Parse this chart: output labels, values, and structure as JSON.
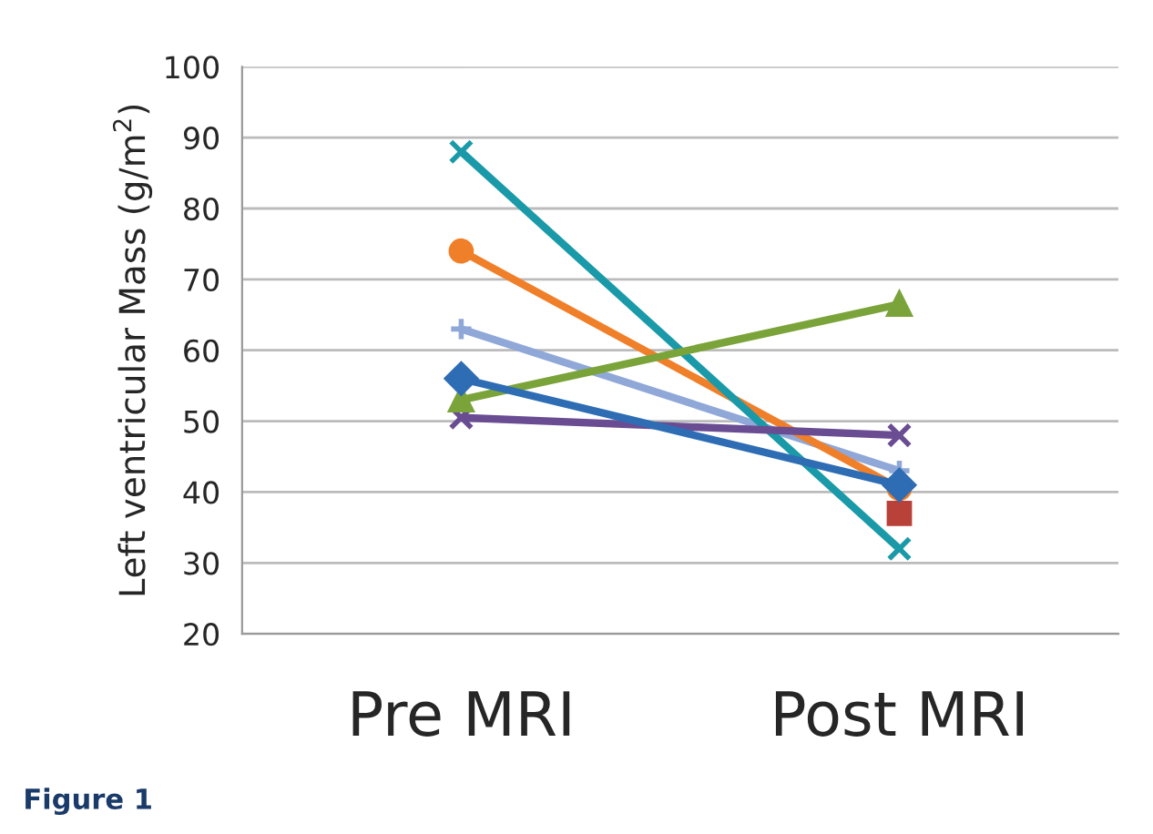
{
  "chart_data": {
    "type": "line",
    "ylabel": "Left ventricular Mass (g/m$^{2}$)",
    "categories": [
      "Pre MRI",
      "Post MRI"
    ],
    "series": [
      {
        "color": "#2e6db4",
        "marker": "diamond",
        "values": [
          56,
          41
        ]
      },
      {
        "color": "#b8413a",
        "marker": "square",
        "values": [
          null,
          37
        ]
      },
      {
        "color": "#7aa33a",
        "marker": "triangle",
        "values": [
          53,
          66.5
        ]
      },
      {
        "color": "#6a4c93",
        "marker": "cross",
        "values": [
          50.5,
          48
        ]
      },
      {
        "color": "#1a9aa8",
        "marker": "cross",
        "values": [
          88,
          32
        ]
      },
      {
        "color": "#f07f2a",
        "marker": "circle",
        "values": [
          74,
          40.5
        ]
      },
      {
        "color": "#8fa8d8",
        "marker": "plus",
        "values": [
          63,
          43
        ]
      }
    ],
    "ylim": [
      20,
      100
    ],
    "yticks": [
      20,
      30,
      40,
      50,
      60,
      70,
      80,
      90,
      100
    ],
    "grid": "y",
    "legend": false,
    "line_style": "solid",
    "annotations": [
      "Figure 1"
    ]
  }
}
